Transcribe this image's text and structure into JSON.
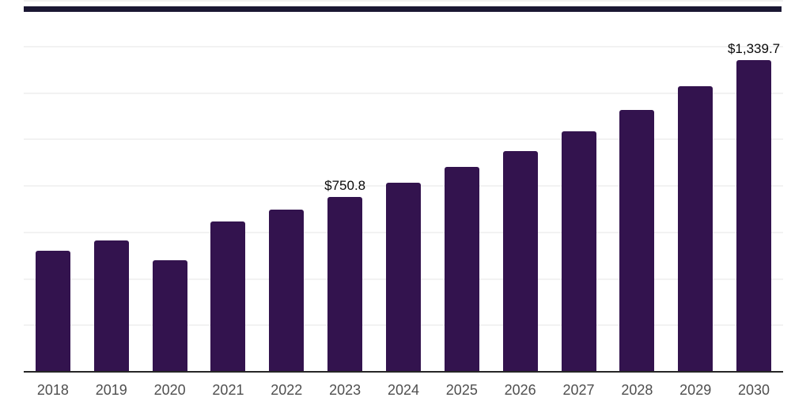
{
  "page": {
    "background": "#ffffff",
    "top_rule_color": "#1a1733"
  },
  "chart_data": {
    "type": "bar",
    "title": "",
    "xlabel": "",
    "ylabel": "",
    "categories": [
      "2018",
      "2019",
      "2020",
      "2021",
      "2022",
      "2023",
      "2024",
      "2025",
      "2026",
      "2027",
      "2028",
      "2029",
      "2030"
    ],
    "values": [
      517,
      562,
      477,
      643,
      694,
      750.8,
      810,
      878,
      946,
      1031,
      1123,
      1225,
      1339.7
    ],
    "data_labels": [
      "",
      "",
      "",
      "",
      "",
      "$750.8",
      "",
      "",
      "",
      "",
      "",
      "",
      "$1,339.7"
    ],
    "ylim": [
      0,
      1600
    ],
    "gridline_values": [
      200,
      400,
      600,
      800,
      1000,
      1200,
      1400,
      1600
    ],
    "grid": "horizontal",
    "legend": "none",
    "bar_color": "#33134e",
    "grid_color": "#f2f2f2",
    "axis_line_color": "#262626",
    "tick_label_color": "#4f4f4f",
    "data_label_color": "#0a0a0a"
  }
}
